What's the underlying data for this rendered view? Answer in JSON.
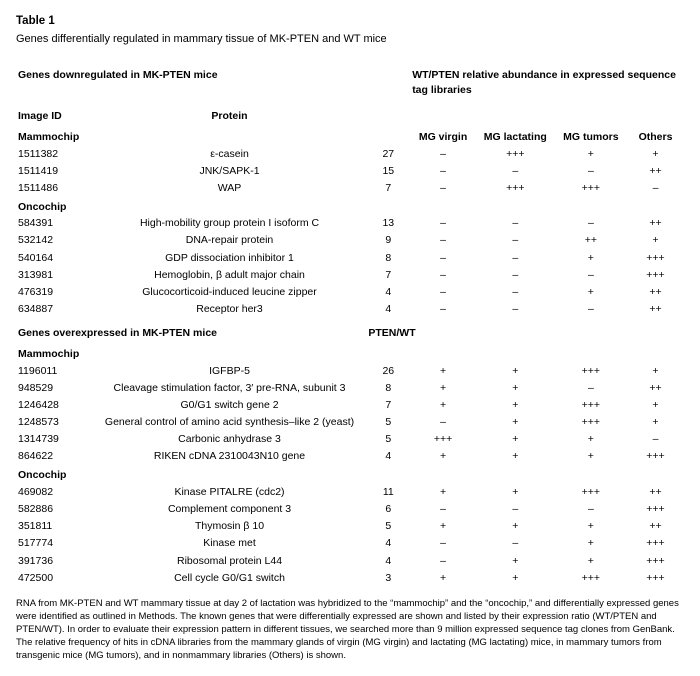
{
  "table_label": "Table 1",
  "table_caption": "Genes differentially regulated in mammary tissue of MK-PTEN and WT mice",
  "header_left_down": "Genes downregulated in MK-PTEN mice",
  "header_left_over": "Genes overexpressed in MK-PTEN mice",
  "header_right": "WT/PTEN relative abundance in expressed sequence tag libraries",
  "col_image_id": "Image ID",
  "col_protein": "Protein",
  "col_mg_virgin": "MG virgin",
  "col_mg_lact": "MG lactating",
  "col_mg_tumors": "MG tumors",
  "col_others": "Others",
  "ratio_label_down": "",
  "ratio_label_over": "PTEN/WT",
  "subhead_mammo": "Mammochip",
  "subhead_onco": "Oncochip",
  "down_mammo": [
    {
      "id": "1511382",
      "protein": "ε-casein",
      "ratio": "27",
      "v": "–",
      "l": "+++",
      "t": "+",
      "o": "+"
    },
    {
      "id": "1511419",
      "protein": "JNK/SAPK-1",
      "ratio": "15",
      "v": "–",
      "l": "–",
      "t": "–",
      "o": "++"
    },
    {
      "id": "1511486",
      "protein": "WAP",
      "ratio": "7",
      "v": "–",
      "l": "+++",
      "t": "+++",
      "o": "–"
    }
  ],
  "down_onco": [
    {
      "id": "584391",
      "protein": "High-mobility group protein I isoform C",
      "ratio": "13",
      "v": "–",
      "l": "–",
      "t": "–",
      "o": "++"
    },
    {
      "id": "532142",
      "protein": "DNA-repair protein",
      "ratio": "9",
      "v": "–",
      "l": "–",
      "t": "++",
      "o": "+"
    },
    {
      "id": "540164",
      "protein": "GDP dissociation inhibitor 1",
      "ratio": "8",
      "v": "–",
      "l": "–",
      "t": "+",
      "o": "+++"
    },
    {
      "id": "313981",
      "protein": "Hemoglobin, β adult major chain",
      "ratio": "7",
      "v": "–",
      "l": "–",
      "t": "–",
      "o": "+++"
    },
    {
      "id": "476319",
      "protein": "Glucocorticoid-induced leucine zipper",
      "ratio": "4",
      "v": "–",
      "l": "–",
      "t": "+",
      "o": "++"
    },
    {
      "id": "634887",
      "protein": "Receptor her3",
      "ratio": "4",
      "v": "–",
      "l": "–",
      "t": "–",
      "o": "++"
    }
  ],
  "over_mammo": [
    {
      "id": "1196011",
      "protein": "IGFBP-5",
      "ratio": "26",
      "v": "+",
      "l": "+",
      "t": "+++",
      "o": "+"
    },
    {
      "id": "948529",
      "protein": "Cleavage stimulation factor, 3′ pre-RNA, subunit 3",
      "ratio": "8",
      "v": "+",
      "l": "+",
      "t": "–",
      "o": "++"
    },
    {
      "id": "1246428",
      "protein": "G0/G1 switch gene 2",
      "ratio": "7",
      "v": "+",
      "l": "+",
      "t": "+++",
      "o": "+"
    },
    {
      "id": "1248573",
      "protein": "General control of amino acid synthesis–like 2 (yeast)",
      "ratio": "5",
      "v": "–",
      "l": "+",
      "t": "+++",
      "o": "+"
    },
    {
      "id": "1314739",
      "protein": "Carbonic anhydrase 3",
      "ratio": "5",
      "v": "+++",
      "l": "+",
      "t": "+",
      "o": "–"
    },
    {
      "id": "864622",
      "protein": "RIKEN cDNA 2310043N10 gene",
      "ratio": "4",
      "v": "+",
      "l": "+",
      "t": "+",
      "o": "+++"
    }
  ],
  "over_onco": [
    {
      "id": "469082",
      "protein": "Kinase PITALRE (cdc2)",
      "ratio": "11",
      "v": "+",
      "l": "+",
      "t": "+++",
      "o": "++"
    },
    {
      "id": "582886",
      "protein": "Complement component 3",
      "ratio": "6",
      "v": "–",
      "l": "–",
      "t": "–",
      "o": "+++"
    },
    {
      "id": "351811",
      "protein": "Thymosin β 10",
      "ratio": "5",
      "v": "+",
      "l": "+",
      "t": "+",
      "o": "++"
    },
    {
      "id": "517774",
      "protein": "Kinase met",
      "ratio": "4",
      "v": "–",
      "l": "–",
      "t": "+",
      "o": "+++"
    },
    {
      "id": "391736",
      "protein": "Ribosomal protein L44",
      "ratio": "4",
      "v": "–",
      "l": "+",
      "t": "+",
      "o": "+++"
    },
    {
      "id": "472500",
      "protein": "Cell cycle G0/G1 switch",
      "ratio": "3",
      "v": "+",
      "l": "+",
      "t": "+++",
      "o": "+++"
    }
  ],
  "footnote": "RNA from MK-PTEN and WT mammary tissue at day 2 of lactation was hybridized to the “mammochip” and the “oncochip,” and differentially expressed genes were identified as outlined in Methods. The known genes that were differentially expressed are shown and listed by their expression ratio (WT/PTEN and PTEN/WT). In order to evaluate their expression pattern in different tissues, we searched more than 9 million expressed sequence tag clones from GenBank. The relative frequency of hits in cDNA libraries from the mammary glands of virgin (MG virgin) and lactating (MG lactating) mice, in mammary tumors from transgenic mice (MG tumors), and in nonmammary libraries (Others) is shown."
}
